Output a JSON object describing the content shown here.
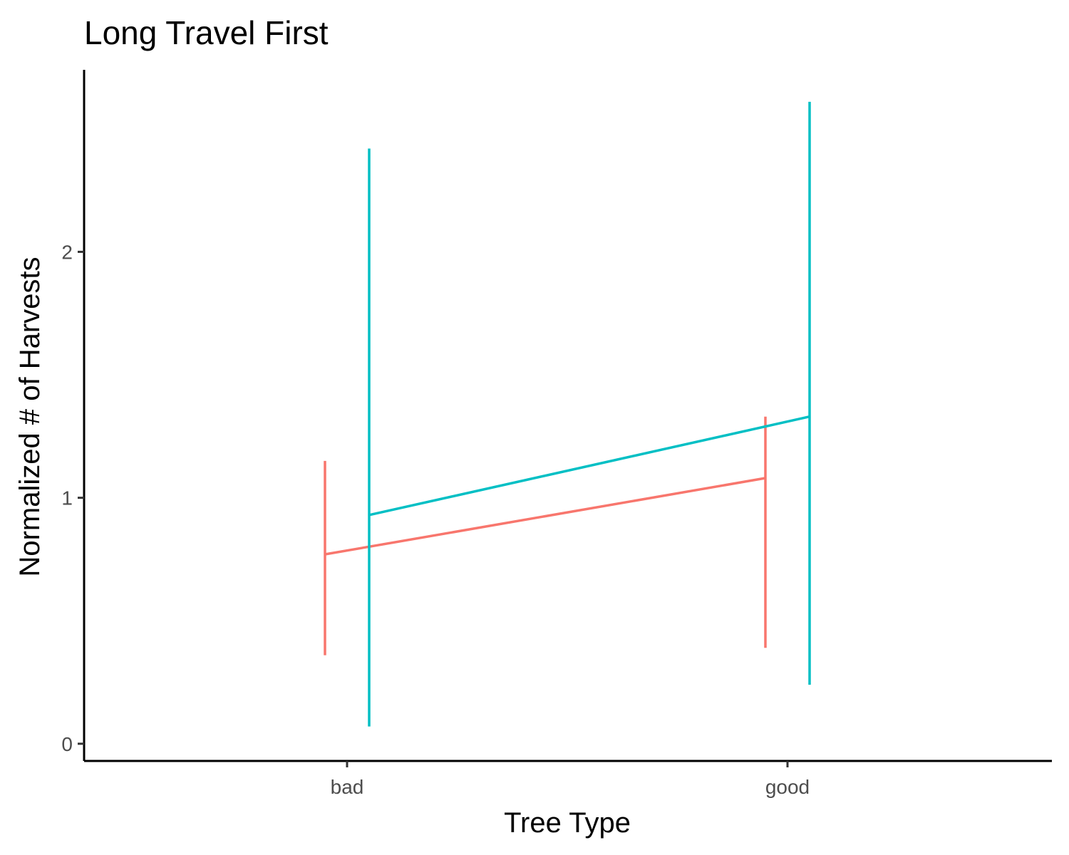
{
  "chart_data": {
    "type": "line",
    "title": "Long Travel First",
    "xlabel": "Tree Type",
    "ylabel": "Normalized # of Harvests",
    "categories": [
      "bad",
      "good"
    ],
    "ylim": [
      -0.07,
      2.74
    ],
    "yticks": [
      0,
      1,
      2
    ],
    "grid": false,
    "legend": "none",
    "series": [
      {
        "color": "#F8766D",
        "values": [
          0.77,
          1.08
        ],
        "lower": [
          0.36,
          0.39
        ],
        "upper": [
          1.15,
          1.33
        ]
      },
      {
        "color": "#00BFC4",
        "values": [
          0.93,
          1.33
        ],
        "lower": [
          0.07,
          0.24
        ],
        "upper": [
          2.42,
          2.61
        ]
      }
    ]
  }
}
